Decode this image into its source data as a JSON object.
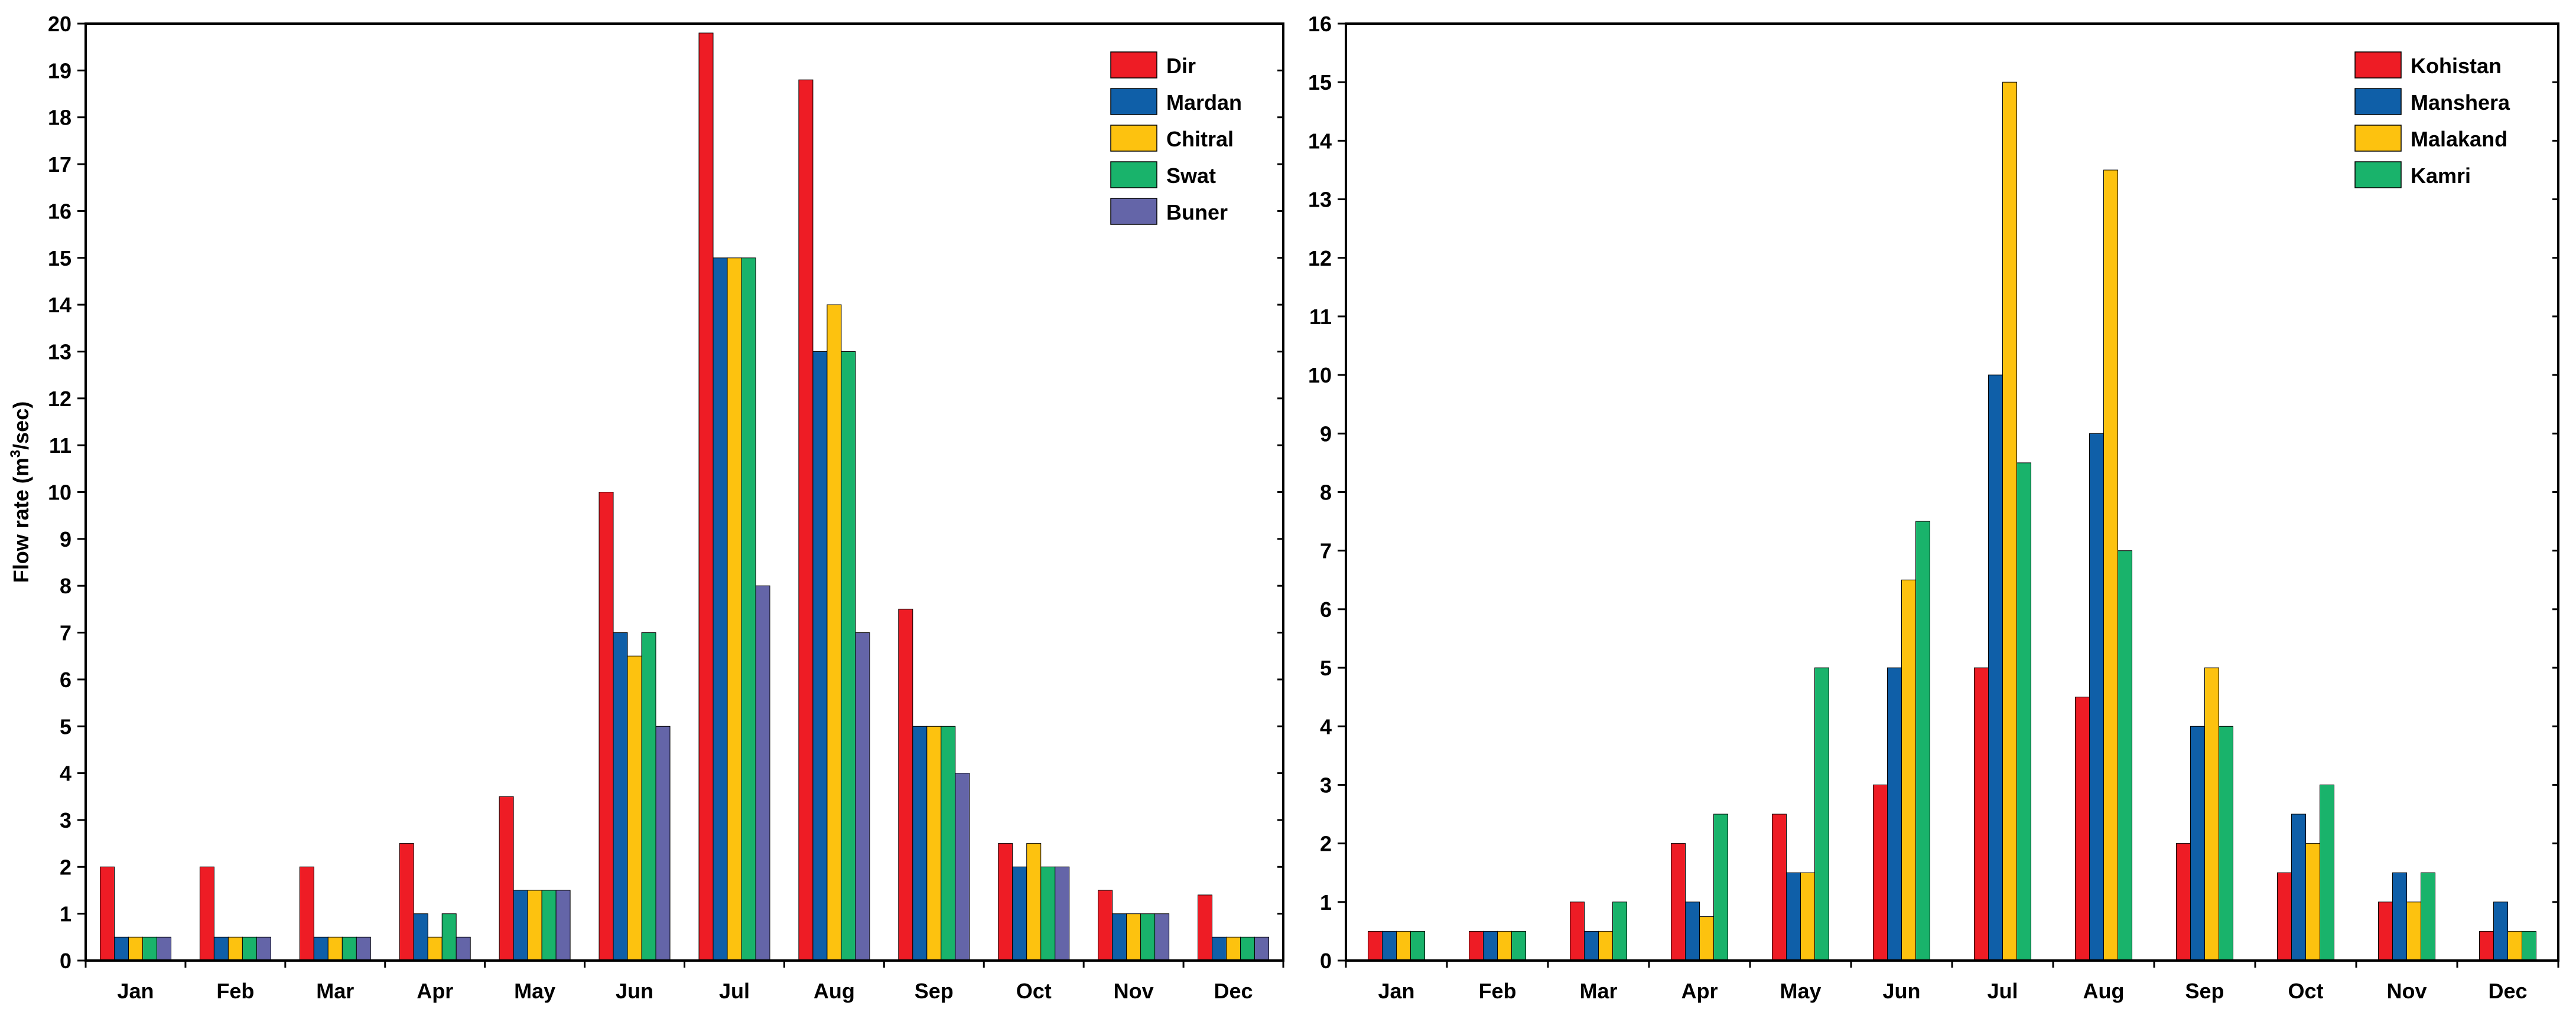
{
  "chart_data": [
    {
      "type": "bar",
      "categories": [
        "Jan",
        "Feb",
        "Mar",
        "Apr",
        "May",
        "Jun",
        "Jul",
        "Aug",
        "Sep",
        "Oct",
        "Nov",
        "Dec"
      ],
      "ylabel": "Flow rate (m³/sec)",
      "ylabel_parts": [
        "Flow rate (m",
        "3",
        "/sec)"
      ],
      "ylim": [
        0,
        20
      ],
      "yticks": [
        0,
        1,
        2,
        3,
        4,
        5,
        6,
        7,
        8,
        9,
        10,
        11,
        12,
        13,
        14,
        15,
        16,
        17,
        18,
        19,
        20
      ],
      "legend_position": "top-right",
      "grid": false,
      "series": [
        {
          "name": "Dir",
          "color": "#ee1c25",
          "values": [
            2,
            2,
            2,
            2.5,
            3.5,
            10,
            19.8,
            18.8,
            7.5,
            2.5,
            1.5,
            1.4
          ]
        },
        {
          "name": "Mardan",
          "color": "#0f5fa8",
          "values": [
            0.5,
            0.5,
            0.5,
            1,
            1.5,
            7,
            15,
            13,
            5,
            2,
            1,
            0.5
          ]
        },
        {
          "name": "Chitral",
          "color": "#fdc20f",
          "values": [
            0.5,
            0.5,
            0.5,
            0.5,
            1.5,
            6.5,
            15,
            14,
            5,
            2.5,
            1,
            0.5
          ]
        },
        {
          "name": "Swat",
          "color": "#19b36b",
          "values": [
            0.5,
            0.5,
            0.5,
            1,
            1.5,
            7,
            15,
            13,
            5,
            2,
            1,
            0.5
          ]
        },
        {
          "name": "Buner",
          "color": "#6465a8",
          "values": [
            0.5,
            0.5,
            0.5,
            0.5,
            1.5,
            5,
            8,
            7,
            4,
            2,
            1,
            0.5
          ]
        }
      ]
    },
    {
      "type": "bar",
      "categories": [
        "Jan",
        "Feb",
        "Mar",
        "Apr",
        "May",
        "Jun",
        "Jul",
        "Aug",
        "Sep",
        "Oct",
        "Nov",
        "Dec"
      ],
      "ylabel": "",
      "ylim": [
        0,
        16
      ],
      "yticks": [
        0,
        1,
        2,
        3,
        4,
        5,
        6,
        7,
        8,
        9,
        10,
        11,
        12,
        13,
        14,
        15,
        16
      ],
      "legend_position": "top-right",
      "grid": false,
      "series": [
        {
          "name": "Kohistan",
          "color": "#ee1c25",
          "values": [
            0.5,
            0.5,
            1,
            2,
            2.5,
            3,
            5,
            4.5,
            2,
            1.5,
            1,
            0.5
          ]
        },
        {
          "name": "Manshera",
          "color": "#0f5fa8",
          "values": [
            0.5,
            0.5,
            0.5,
            1,
            1.5,
            5,
            10,
            9,
            4,
            2.5,
            1.5,
            1
          ]
        },
        {
          "name": "Malakand",
          "color": "#fdc20f",
          "values": [
            0.5,
            0.5,
            0.5,
            0.75,
            1.5,
            6.5,
            15,
            13.5,
            5,
            2,
            1,
            0.5
          ]
        },
        {
          "name": "Kamri",
          "color": "#19b36b",
          "values": [
            0.5,
            0.5,
            1,
            2.5,
            5,
            7.5,
            8.5,
            7,
            4,
            3,
            1.5,
            0.5
          ]
        }
      ]
    }
  ]
}
